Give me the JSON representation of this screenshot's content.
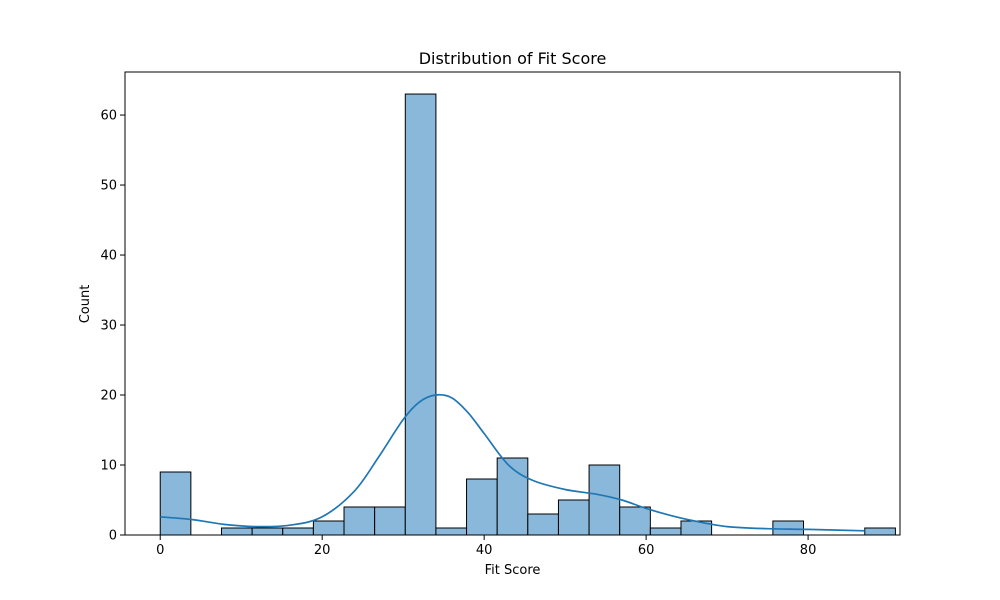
{
  "chart_data": {
    "type": "bar",
    "title": "Distribution of Fit Score",
    "xlabel": "Fit Score",
    "ylabel": "Count",
    "xlim": [
      -4.35,
      91.35
    ],
    "ylim": [
      0,
      66.15
    ],
    "x_ticks": [
      0,
      20,
      40,
      60,
      80
    ],
    "y_ticks": [
      0,
      10,
      20,
      30,
      40,
      50,
      60
    ],
    "bin_start": 0,
    "bin_width": 3.7826,
    "counts": [
      9,
      0,
      1,
      1,
      1,
      2,
      4,
      4,
      63,
      1,
      8,
      11,
      3,
      5,
      10,
      4,
      1,
      2,
      0,
      0,
      2,
      0,
      0,
      1
    ],
    "bar_color": "#8ab8db",
    "bar_edge_color": "#000000",
    "kde": {
      "color": "#1f77b4",
      "x": [
        0,
        4,
        8,
        12,
        16,
        20,
        24,
        27,
        30,
        32,
        34,
        36,
        38,
        40,
        43,
        46,
        50,
        54,
        57,
        60,
        63,
        66,
        70,
        75,
        80,
        87
      ],
      "y": [
        2.6,
        2.2,
        1.5,
        1.2,
        1.4,
        2.6,
        6.3,
        11.2,
        16.5,
        19.0,
        20.0,
        19.6,
        17.5,
        14.5,
        10.0,
        7.8,
        6.5,
        5.8,
        5.0,
        3.8,
        2.8,
        2.0,
        1.2,
        0.9,
        0.8,
        0.6
      ]
    }
  }
}
